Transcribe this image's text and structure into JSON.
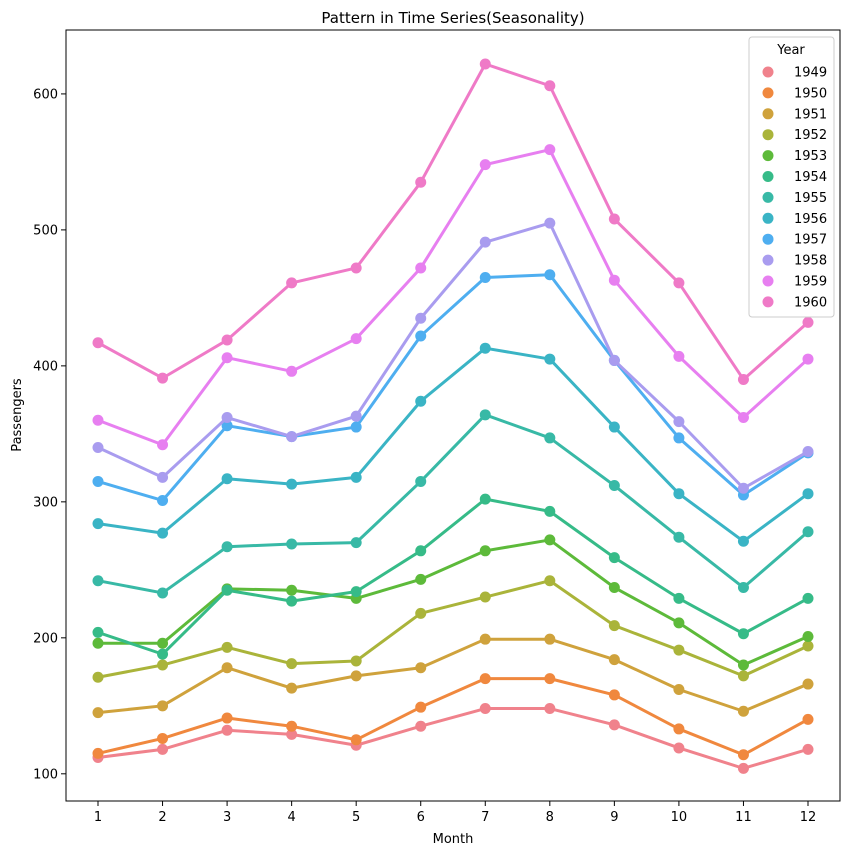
{
  "chart_data": {
    "type": "line",
    "title": "Pattern in Time Series(Seasonality)",
    "xlabel": "Month",
    "ylabel": "Passengers",
    "categories": [
      "1",
      "2",
      "3",
      "4",
      "5",
      "6",
      "7",
      "8",
      "9",
      "10",
      "11",
      "12"
    ],
    "yticks": [
      100,
      200,
      300,
      400,
      500,
      600
    ],
    "ylim": [
      80,
      647
    ],
    "grid": false,
    "legend": {
      "title": "Year",
      "placement": "top-right"
    },
    "series": [
      {
        "name": "1949",
        "color": "#f0828c",
        "values": [
          112,
          118,
          132,
          129,
          121,
          135,
          148,
          148,
          136,
          119,
          104,
          118
        ]
      },
      {
        "name": "1950",
        "color": "#f0883e",
        "values": [
          115,
          126,
          141,
          135,
          125,
          149,
          170,
          170,
          158,
          133,
          114,
          140
        ]
      },
      {
        "name": "1951",
        "color": "#cfa23c",
        "values": [
          145,
          150,
          178,
          163,
          172,
          178,
          199,
          199,
          184,
          162,
          146,
          166
        ]
      },
      {
        "name": "1952",
        "color": "#aab43a",
        "values": [
          171,
          180,
          193,
          181,
          183,
          218,
          230,
          242,
          209,
          191,
          172,
          194
        ]
      },
      {
        "name": "1953",
        "color": "#5dba3a",
        "values": [
          196,
          196,
          236,
          235,
          229,
          243,
          264,
          272,
          237,
          211,
          180,
          201
        ]
      },
      {
        "name": "1954",
        "color": "#36bb88",
        "values": [
          204,
          188,
          235,
          227,
          234,
          264,
          302,
          293,
          259,
          229,
          203,
          229
        ]
      },
      {
        "name": "1955",
        "color": "#38b9a6",
        "values": [
          242,
          233,
          267,
          269,
          270,
          315,
          364,
          347,
          312,
          274,
          237,
          278
        ]
      },
      {
        "name": "1956",
        "color": "#3ab4c5",
        "values": [
          284,
          277,
          317,
          313,
          318,
          374,
          413,
          405,
          355,
          306,
          271,
          306
        ]
      },
      {
        "name": "1957",
        "color": "#4eaef0",
        "values": [
          315,
          301,
          356,
          348,
          355,
          422,
          465,
          467,
          404,
          347,
          305,
          336
        ]
      },
      {
        "name": "1958",
        "color": "#a99cef",
        "values": [
          340,
          318,
          362,
          348,
          363,
          435,
          491,
          505,
          404,
          359,
          310,
          337
        ]
      },
      {
        "name": "1959",
        "color": "#e77ff0",
        "values": [
          360,
          342,
          406,
          396,
          420,
          472,
          548,
          559,
          463,
          407,
          362,
          405
        ]
      },
      {
        "name": "1960",
        "color": "#ef7ac7",
        "values": [
          417,
          391,
          419,
          461,
          472,
          535,
          622,
          606,
          508,
          461,
          390,
          432
        ]
      }
    ]
  }
}
